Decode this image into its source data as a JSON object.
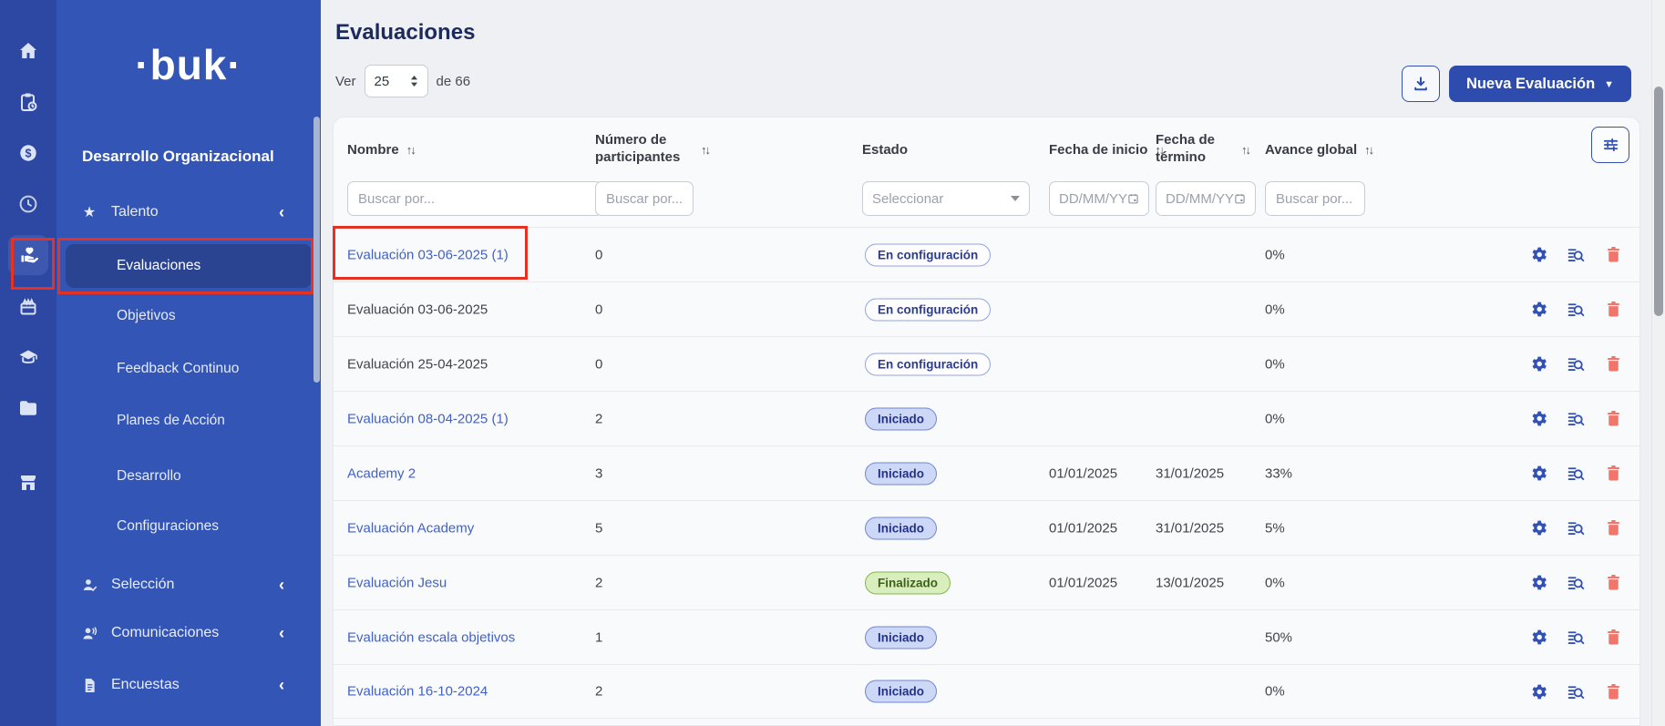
{
  "colors": {
    "rail_bg": "#2c48a2",
    "sidebar_bg": "#3356b6",
    "selected_item_bg": "#2a4492",
    "page_bg": "#eef0f3",
    "card_bg": "#f9fafc",
    "primary_button": "#2e4cae",
    "link": "#4161c9",
    "danger_icon": "#f0756b",
    "annotation_red": "#e63225",
    "badge_config_border": "#93a5e0",
    "badge_started_bg": "#cdd7f6",
    "badge_finished_bg": "#d9eebd"
  },
  "rail": {
    "icons": [
      {
        "name": "home"
      },
      {
        "name": "clipboard-clock"
      },
      {
        "name": "dollar"
      },
      {
        "name": "clock"
      },
      {
        "name": "hand-heart",
        "selected": true,
        "annotated": true
      },
      {
        "name": "gift"
      },
      {
        "name": "graduation-cap"
      },
      {
        "name": "folder"
      },
      {
        "name": "storefront"
      }
    ]
  },
  "sidebar": {
    "logo": "·buk·",
    "section_title": "Desarrollo Organizacional",
    "talento": {
      "label": "Talento",
      "icon": "star"
    },
    "submenu": [
      {
        "label": "Evaluaciones",
        "selected": true,
        "annotated": true
      },
      {
        "label": "Objetivos"
      },
      {
        "label": "Feedback Continuo"
      },
      {
        "label": "Planes de Acción"
      },
      {
        "label": "Desarrollo"
      },
      {
        "label": "Configuraciones"
      }
    ],
    "groups": [
      {
        "label": "Selección",
        "icon": "person-check"
      },
      {
        "label": "Comunicaciones",
        "icon": "person-voice"
      },
      {
        "label": "Encuestas",
        "icon": "document"
      }
    ]
  },
  "toolbar": {
    "title": "Evaluaciones",
    "ver_label": "Ver",
    "page_size": "25",
    "total_label": "de 66",
    "new_button_label": "Nueva Evaluación"
  },
  "table": {
    "headers": {
      "name": "Nombre",
      "participants": "Número de participantes",
      "status": "Estado",
      "start": "Fecha de inicio",
      "end": "Fecha de término",
      "progress": "Avance global"
    },
    "filters": {
      "search_placeholder": "Buscar por...",
      "status_placeholder": "Seleccionar",
      "date_placeholder": "DD/MM/YY"
    },
    "rows": [
      {
        "name": "Evaluación 03-06-2025 (1)",
        "link": true,
        "annotated": true,
        "participants": "0",
        "status": "En configuración",
        "status_type": "config",
        "progress": "0%"
      },
      {
        "name": "Evaluación 03-06-2025",
        "link": false,
        "participants": "0",
        "status": "En configuración",
        "status_type": "config",
        "progress": "0%"
      },
      {
        "name": "Evaluación 25-04-2025",
        "link": false,
        "participants": "0",
        "status": "En configuración",
        "status_type": "config",
        "progress": "0%"
      },
      {
        "name": "Evaluación 08-04-2025 (1)",
        "link": true,
        "participants": "2",
        "status": "Iniciado",
        "status_type": "started",
        "progress": "0%"
      },
      {
        "name": "Academy 2",
        "link": true,
        "participants": "3",
        "status": "Iniciado",
        "status_type": "started",
        "start": "01/01/2025",
        "end": "31/01/2025",
        "progress": "33%"
      },
      {
        "name": "Evaluación Academy",
        "link": true,
        "participants": "5",
        "status": "Iniciado",
        "status_type": "started",
        "start": "01/01/2025",
        "end": "31/01/2025",
        "progress": "5%"
      },
      {
        "name": "Evaluación Jesu",
        "link": true,
        "participants": "2",
        "status": "Finalizado",
        "status_type": "finished",
        "start": "01/01/2025",
        "end": "13/01/2025",
        "progress": "0%"
      },
      {
        "name": "Evaluación escala objetivos",
        "link": true,
        "participants": "1",
        "status": "Iniciado",
        "status_type": "started",
        "progress": "50%"
      },
      {
        "name": "Evaluación 16-10-2024",
        "link": true,
        "participants": "2",
        "status": "Iniciado",
        "status_type": "started",
        "progress": "0%"
      }
    ]
  }
}
